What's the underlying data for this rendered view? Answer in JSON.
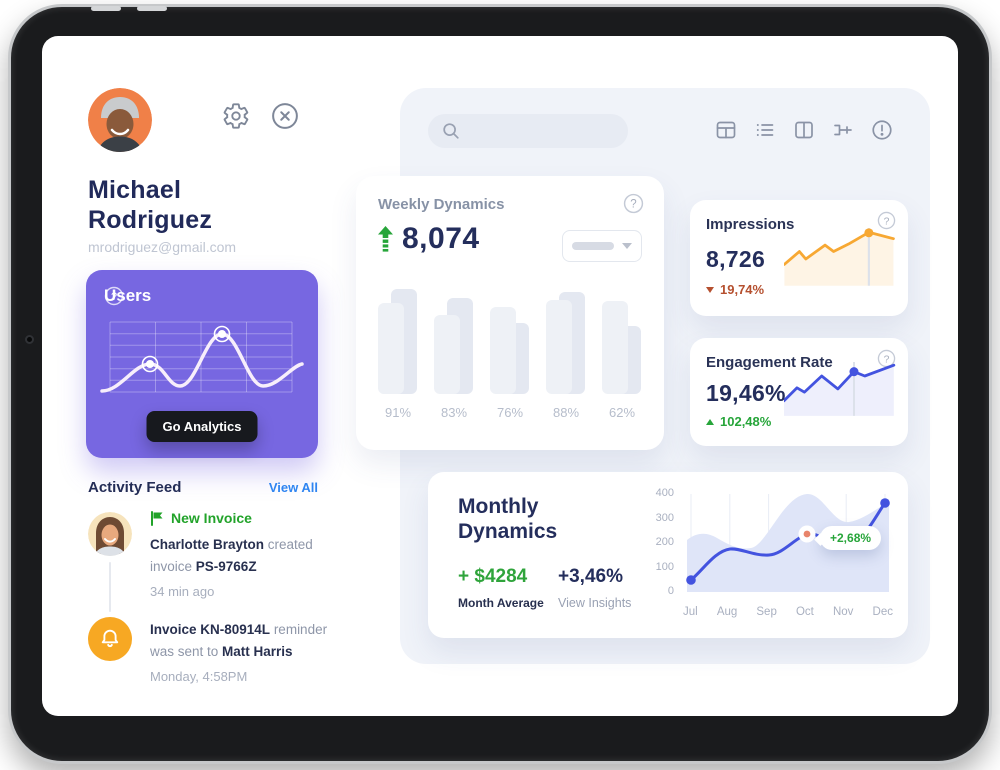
{
  "profile": {
    "name": "Michael Rodriguez",
    "email": "mrodriguez@gmail.com"
  },
  "sidebar": {
    "users_card": {
      "title": "Users",
      "button_label": "Go Analytics"
    },
    "activity": {
      "title": "Activity Feed",
      "view_all_label": "View All",
      "items": [
        {
          "badge": "New Invoice",
          "parts": [
            {
              "t": "Charlotte Brayton"
            },
            {
              "t": " created invoice "
            },
            {
              "t": "PS-9766Z"
            }
          ],
          "time": "34 min ago"
        },
        {
          "parts": [
            {
              "t": "Invoice KN-80914L"
            },
            {
              "t": " reminder was sent to "
            },
            {
              "t": "Matt Harris"
            }
          ],
          "time": "Monday, 4:58PM"
        }
      ]
    }
  },
  "search": {
    "value": ""
  },
  "weekly": {
    "title": "Weekly Dynamics",
    "value": "8,074"
  },
  "impressions": {
    "title": "Impressions",
    "value": "8,726",
    "delta": "19,74%",
    "delta_dir": "down"
  },
  "engagement": {
    "title": "Engagement Rate",
    "value": "19,46%",
    "delta": "102,48%",
    "delta_dir": "up"
  },
  "monthly": {
    "title_line1": "Monthly",
    "title_line2": "Dynamics",
    "amount": "+ $4284",
    "amount_label": "Month Average",
    "percent": "+3,46%",
    "percent_label": "View Insights",
    "tooltip": "+2,68%"
  },
  "colors": {
    "accent_purple": "#7767E1",
    "green": "#27A53A",
    "red": "#B5502F",
    "blue_line": "#4353DF",
    "orange_line": "#F7A833",
    "link_blue": "#2F85F1",
    "navy_text": "#242E5C",
    "panel_bg": "#F0F3F9"
  },
  "chart_data": [
    {
      "id": "users-sparkline",
      "type": "line",
      "series": [
        {
          "name": "Users",
          "values": [
            10,
            45,
            15,
            88,
            15,
            45
          ]
        }
      ],
      "notes": "white wave on purple card, 4x6 grid, markers on points 2 and 4, values estimated 0-100"
    },
    {
      "id": "weekly-bars",
      "type": "bar",
      "categories": [
        "91%",
        "83%",
        "76%",
        "88%",
        "62%"
      ],
      "series": [
        {
          "name": "front",
          "values": [
            84,
            73,
            81,
            87,
            86
          ]
        },
        {
          "name": "back",
          "values": [
            97,
            89,
            66,
            94,
            63
          ]
        }
      ],
      "ylim": [
        0,
        100
      ],
      "notes": "paired overlapping gray bars, heights estimated from pixels"
    },
    {
      "id": "impressions-sparkline",
      "type": "area",
      "values": [
        40,
        58,
        47,
        67,
        58,
        65,
        92,
        83
      ],
      "marker_index": 6,
      "notes": "orange line, vertical marker with dot at peak, values estimated 0-100"
    },
    {
      "id": "engagement-sparkline",
      "type": "area",
      "values": [
        31,
        54,
        48,
        75,
        54,
        83,
        75,
        94
      ],
      "marker_index": 5,
      "notes": "blue line, vertical marker with dot, values estimated 0-100"
    },
    {
      "id": "monthly-dynamics",
      "type": "area+line",
      "x": [
        "Jul",
        "Aug",
        "Sep",
        "Oct",
        "Nov",
        "Dec"
      ],
      "series": [
        {
          "name": "dynamics",
          "values": [
            50,
            175,
            150,
            235,
            185,
            365
          ]
        },
        {
          "name": "background",
          "values": [
            225,
            190,
            230,
            400,
            290,
            360
          ]
        }
      ],
      "yticks": [
        400,
        300,
        200,
        100,
        0
      ],
      "ylim": [
        0,
        400
      ],
      "tooltip": {
        "x": "Oct",
        "label": "+2,68%"
      },
      "notes": "blue line with end dots, Oct highlighted with white marker and tooltip, background soft blue area"
    }
  ]
}
